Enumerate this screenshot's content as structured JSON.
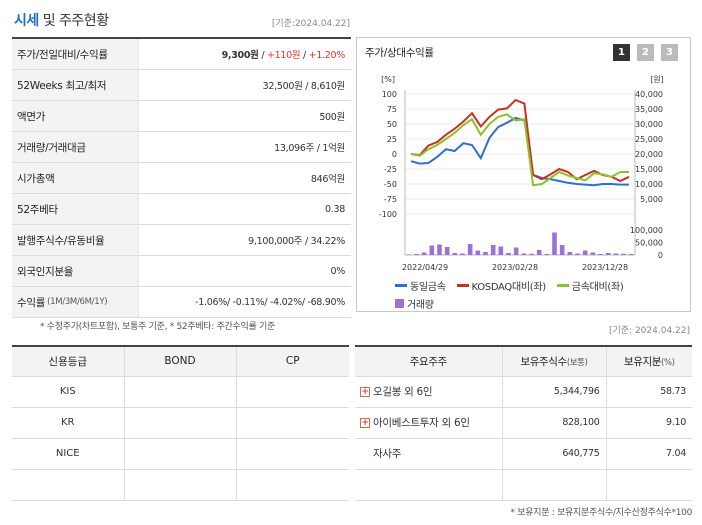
{
  "header": {
    "title_main": "시세",
    "title_rest": "및 주주현황",
    "date": "[기준:2024.04.22]"
  },
  "info": {
    "rows": [
      {
        "label": "주가/전일대비/수익률",
        "price": "9,300원",
        "sep1": " / ",
        "change": "+110원",
        "sep2": " / ",
        "rate": "+1.20%"
      },
      {
        "label": "52Weeks 최고/최저",
        "value": "32,500원 / 8,610원"
      },
      {
        "label": "액면가",
        "value": "500원"
      },
      {
        "label": "거래량/거래대금",
        "value": "13,096주 / 1억원"
      },
      {
        "label": "시가총액",
        "value": "846억원"
      },
      {
        "label": "52주베타",
        "value": "0.38"
      },
      {
        "label": "발행주식수/유동비율",
        "value": "9,100,000주 / 34.22%"
      },
      {
        "label": "외국인지분율",
        "value": "0%"
      },
      {
        "label": "수익률",
        "label_sub": "(1M/3M/6M/1Y)",
        "value": "-1.06%/ -0.11%/ -4.02%/ -68.90%"
      }
    ],
    "note": "* 수정주가(차트포함), 보통주 기준, * 52주베타: 주간수익률 기준"
  },
  "chart_panel": {
    "title": "주가/상대수익률",
    "period_buttons": [
      "1",
      "2",
      "3"
    ],
    "active_button": "1",
    "legend": [
      "동일금속",
      "KOSDAQ대비(좌)",
      "금속대비(좌)",
      "거래량"
    ]
  },
  "chart_data": {
    "type": "line",
    "left_axis_label": "[%]",
    "right_axis_label": "[원]",
    "left_ticks": [
      "100",
      "75",
      "50",
      "25",
      "0",
      "-25",
      "-50",
      "-75",
      "-100"
    ],
    "right_ticks": [
      "40,000",
      "35,000",
      "30,000",
      "25,000",
      "20,000",
      "15,000",
      "10,000",
      "5,000"
    ],
    "volume_ticks": [
      "100,000",
      "50,000",
      "0"
    ],
    "x_ticks": [
      "2022/04/29",
      "2023/02/28",
      "2023/12/28"
    ],
    "left_range": [
      -100,
      100
    ],
    "right_range": [
      0,
      40000
    ],
    "volume_range": [
      0,
      100000
    ],
    "series": [
      {
        "name": "동일금속",
        "axis": "left",
        "color": "#2f6fd1",
        "values": [
          -12,
          -16,
          -15,
          -5,
          8,
          5,
          18,
          15,
          -7,
          27,
          45,
          52,
          60,
          56,
          -35,
          -40,
          -42,
          -45,
          -48,
          -50,
          -51,
          -52,
          -50,
          -50,
          -51,
          -51
        ]
      },
      {
        "name": "KOSDAQ대비(좌)",
        "axis": "left",
        "color": "#c8321e",
        "values": [
          0,
          -2,
          14,
          20,
          32,
          42,
          54,
          68,
          46,
          62,
          74,
          76,
          90,
          84,
          -35,
          -42,
          -34,
          -25,
          -30,
          -42,
          -35,
          -28,
          -35,
          -38,
          -45,
          -38
        ]
      },
      {
        "name": "금속대비(좌)",
        "axis": "left",
        "color": "#8cc12e",
        "values": [
          0,
          -3,
          8,
          15,
          25,
          35,
          48,
          58,
          32,
          50,
          62,
          66,
          56,
          58,
          -52,
          -50,
          -40,
          -30,
          -36,
          -40,
          -44,
          -32,
          -34,
          -38,
          -30,
          -30
        ]
      }
    ],
    "volume": {
      "name": "거래량",
      "color": "#9c72d6",
      "values": [
        2,
        4,
        10,
        38,
        42,
        32,
        8,
        6,
        44,
        18,
        12,
        40,
        34,
        8,
        30,
        6,
        5,
        20,
        4,
        90,
        40,
        12,
        6,
        18,
        10,
        4,
        8,
        6,
        5,
        4
      ]
    }
  },
  "date2": "[기준: 2024.04.22]",
  "credit": {
    "headers": [
      "신용등급",
      "BOND",
      "CP"
    ],
    "rows": [
      {
        "agency": "KIS",
        "bond": "",
        "cp": ""
      },
      {
        "agency": "KR",
        "bond": "",
        "cp": ""
      },
      {
        "agency": "NICE",
        "bond": "",
        "cp": ""
      },
      {
        "agency": "",
        "bond": "",
        "cp": ""
      }
    ]
  },
  "holders": {
    "headers": [
      "주요주주",
      "보유주식수",
      "(보통)",
      "보유지분",
      "(%)"
    ],
    "rows": [
      {
        "name": "오길봉 외 6인",
        "expand": "+",
        "shares": "5,344,796",
        "ratio": "58.73"
      },
      {
        "name": "아이베스트투자 외 6인",
        "expand": "+",
        "shares": "828,100",
        "ratio": "9.10"
      },
      {
        "name": "자사주",
        "expand": "",
        "shares": "640,775",
        "ratio": "7.04"
      },
      {
        "name": "",
        "expand": "",
        "shares": "",
        "ratio": ""
      }
    ],
    "note": "* 보유지분 : 보유지분주식수/지수산정주식수*100"
  }
}
